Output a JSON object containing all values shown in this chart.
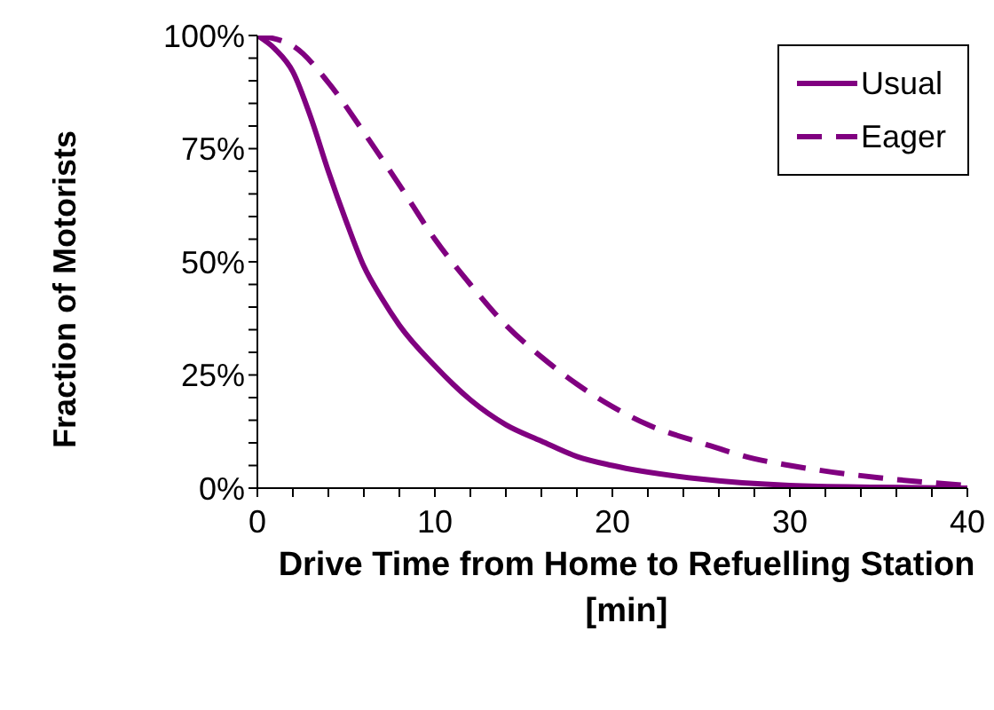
{
  "chart_data": {
    "type": "line",
    "xlabel": "Drive Time from Home to Refuelling Station [min]",
    "ylabel": "Fraction of Motorists",
    "xlim": [
      0,
      40
    ],
    "xticks": [
      0,
      {
        "value": 2,
        "label": null
      },
      {
        "value": 4,
        "label": null
      },
      {
        "value": 6,
        "label": null
      },
      {
        "value": 8,
        "label": null
      },
      10,
      {
        "value": 12,
        "label": null
      },
      {
        "value": 14,
        "label": null
      },
      {
        "value": 16,
        "label": null
      },
      {
        "value": 18,
        "label": null
      },
      20,
      {
        "value": 22,
        "label": null
      },
      {
        "value": 24,
        "label": null
      },
      {
        "value": 26,
        "label": null
      },
      {
        "value": 28,
        "label": null
      },
      30,
      {
        "value": 32,
        "label": null
      },
      {
        "value": 34,
        "label": null
      },
      {
        "value": 36,
        "label": null
      },
      {
        "value": 38,
        "label": null
      },
      40
    ],
    "ylim": [
      0,
      100
    ],
    "yticks": [
      {
        "value": 0,
        "label": "0%"
      },
      {
        "value": 5,
        "label": null
      },
      {
        "value": 10,
        "label": null
      },
      {
        "value": 15,
        "label": null
      },
      {
        "value": 20,
        "label": null
      },
      {
        "value": 25,
        "label": "25%"
      },
      {
        "value": 30,
        "label": null
      },
      {
        "value": 35,
        "label": null
      },
      {
        "value": 40,
        "label": null
      },
      {
        "value": 45,
        "label": null
      },
      {
        "value": 50,
        "label": "50%"
      },
      {
        "value": 55,
        "label": null
      },
      {
        "value": 60,
        "label": null
      },
      {
        "value": 65,
        "label": null
      },
      {
        "value": 70,
        "label": null
      },
      {
        "value": 75,
        "label": "75%"
      },
      {
        "value": 80,
        "label": null
      },
      {
        "value": 85,
        "label": null
      },
      {
        "value": 90,
        "label": null
      },
      {
        "value": 95,
        "label": null
      },
      {
        "value": 100,
        "label": "100%"
      }
    ],
    "grid": false,
    "legend": "top right",
    "marker": "none",
    "series": [
      {
        "name": "Usual",
        "color": "#800080",
        "line_style": "solid",
        "x": [
          0,
          1,
          2,
          3,
          4,
          5,
          6,
          7,
          8,
          10,
          12,
          14,
          16,
          18,
          20,
          25,
          30,
          35,
          40
        ],
        "values": [
          100,
          97,
          92,
          82,
          70,
          59,
          49,
          42,
          36,
          27,
          19.5,
          14,
          10.4,
          7,
          5,
          2,
          0.6,
          0.2,
          0
        ]
      },
      {
        "name": "Eager",
        "color": "#800080",
        "line_style": "dashed",
        "x": [
          0,
          2,
          4,
          6,
          8,
          10,
          12,
          14,
          16,
          18,
          20,
          22,
          25,
          28,
          30,
          35,
          40
        ],
        "values": [
          100,
          97.7,
          89.6,
          78.6,
          67,
          55,
          45,
          36,
          29,
          23,
          18,
          14,
          10,
          6.5,
          5,
          2.3,
          0.6
        ]
      }
    ]
  }
}
